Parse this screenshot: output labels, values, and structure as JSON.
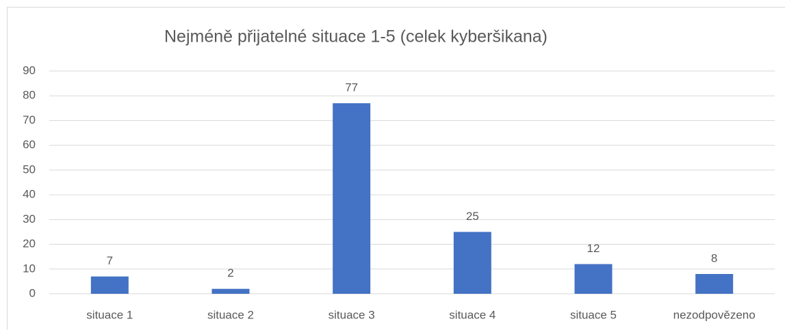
{
  "chart_data": {
    "type": "bar",
    "title": "Nejméně přijatelné situace 1-5 (celek kyberšikana)",
    "categories": [
      "situace 1",
      "situace 2",
      "situace 3",
      "situace 4",
      "situace 5",
      "nezodpovězeno"
    ],
    "values": [
      7,
      2,
      77,
      25,
      12,
      8
    ],
    "color": "#4472c4",
    "ylim": [
      0,
      90
    ],
    "yticks": [
      0,
      10,
      20,
      30,
      40,
      50,
      60,
      70,
      80,
      90
    ],
    "grid": true
  }
}
